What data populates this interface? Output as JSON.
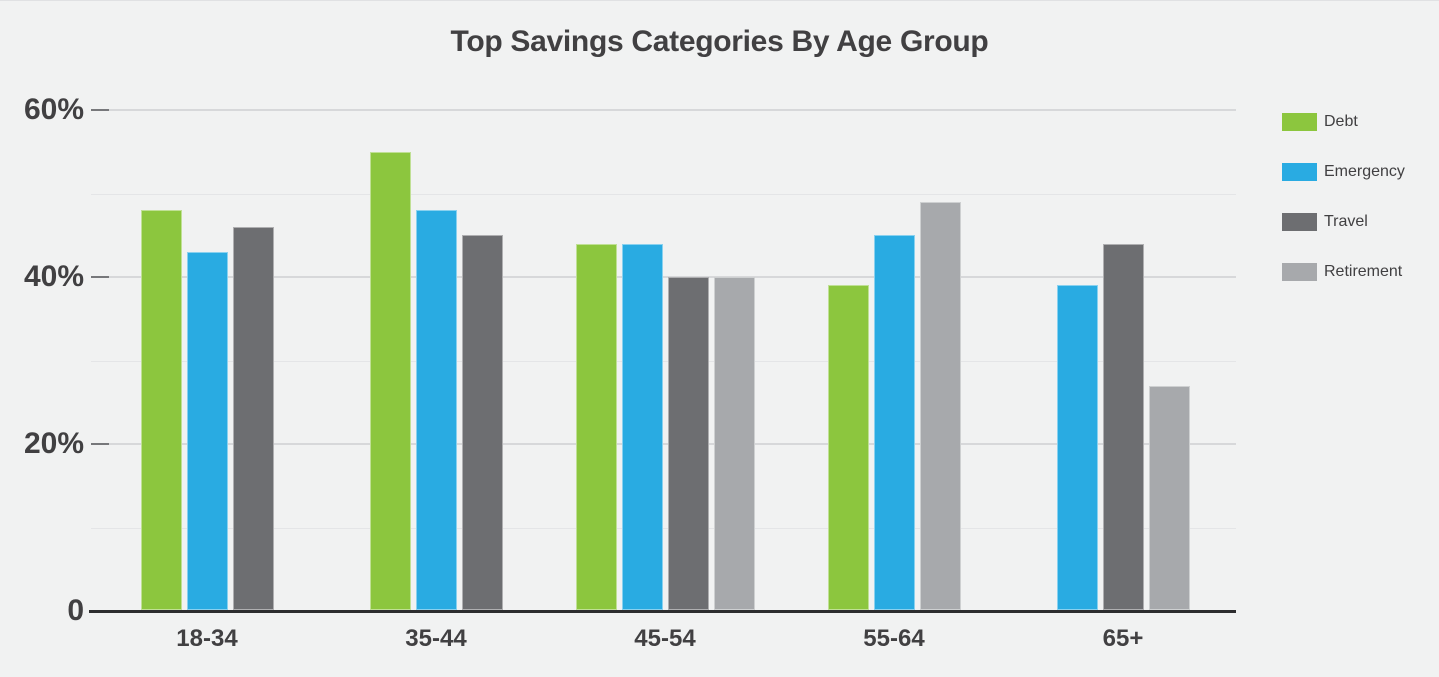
{
  "title": "Top Savings Categories By Age Group",
  "chart_data": {
    "type": "bar",
    "title": "Top Savings Categories By Age Group",
    "categories": [
      "18-34",
      "35-44",
      "45-54",
      "55-64",
      "65+"
    ],
    "series": [
      {
        "name": "Debt",
        "color": "#8CC63E",
        "values": [
          48,
          55,
          44,
          39,
          null
        ]
      },
      {
        "name": "Emergency",
        "color": "#29ABE2",
        "values": [
          43,
          48,
          44,
          45,
          39
        ]
      },
      {
        "name": "Travel",
        "color": "#6D6E71",
        "values": [
          46,
          45,
          40,
          null,
          44
        ]
      },
      {
        "name": "Retirement",
        "color": "#A7A9AC",
        "values": [
          null,
          null,
          40,
          49,
          27
        ]
      }
    ],
    "y_axis": {
      "ticks": [
        0,
        20,
        40,
        60
      ],
      "tick_labels": [
        "0",
        "20%",
        "40%",
        "60%"
      ],
      "minor_ticks": [
        10,
        30,
        50
      ],
      "min": 0,
      "max": 60,
      "unit": "%"
    },
    "xlabel": "",
    "ylabel": "",
    "grid": true,
    "legend_position": "right"
  },
  "colors": {
    "background": "#F1F2F2",
    "text": "#414042",
    "grid_major": "#D7D8DA",
    "grid_minor": "#E4E5E7",
    "axis": "#2D2D2F"
  }
}
